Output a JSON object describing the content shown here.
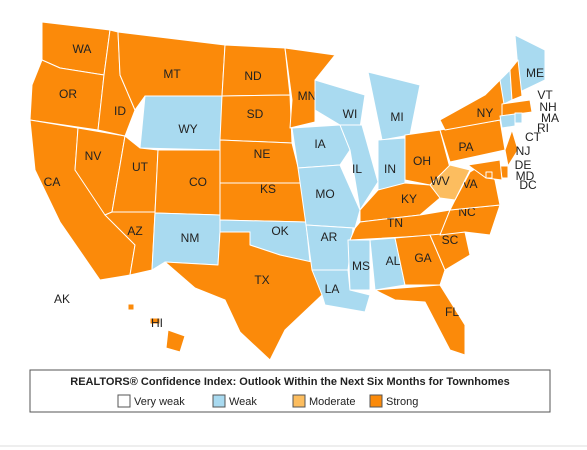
{
  "map": {
    "states": [
      {
        "label": "WA",
        "rating": "Strong"
      },
      {
        "label": "OR",
        "rating": "Strong"
      },
      {
        "label": "CA",
        "rating": "Strong"
      },
      {
        "label": "NV",
        "rating": "Strong"
      },
      {
        "label": "ID",
        "rating": "Strong"
      },
      {
        "label": "MT",
        "rating": "Strong"
      },
      {
        "label": "WY",
        "rating": "Weak"
      },
      {
        "label": "UT",
        "rating": "Strong"
      },
      {
        "label": "AZ",
        "rating": "Strong"
      },
      {
        "label": "CO",
        "rating": "Strong"
      },
      {
        "label": "NM",
        "rating": "Weak"
      },
      {
        "label": "ND",
        "rating": "Strong"
      },
      {
        "label": "SD",
        "rating": "Strong"
      },
      {
        "label": "NE",
        "rating": "Strong"
      },
      {
        "label": "KS",
        "rating": "Strong"
      },
      {
        "label": "OK",
        "rating": "Weak"
      },
      {
        "label": "TX",
        "rating": "Strong"
      },
      {
        "label": "MN",
        "rating": "Strong"
      },
      {
        "label": "IA",
        "rating": "Weak"
      },
      {
        "label": "MO",
        "rating": "Weak"
      },
      {
        "label": "AR",
        "rating": "Weak"
      },
      {
        "label": "LA",
        "rating": "Weak"
      },
      {
        "label": "WI",
        "rating": "Weak"
      },
      {
        "label": "IL",
        "rating": "Weak"
      },
      {
        "label": "MI",
        "rating": "Weak"
      },
      {
        "label": "IN",
        "rating": "Weak"
      },
      {
        "label": "OH",
        "rating": "Strong"
      },
      {
        "label": "KY",
        "rating": "Strong"
      },
      {
        "label": "TN",
        "rating": "Strong"
      },
      {
        "label": "MS",
        "rating": "Weak"
      },
      {
        "label": "AL",
        "rating": "Weak"
      },
      {
        "label": "GA",
        "rating": "Strong"
      },
      {
        "label": "FL",
        "rating": "Strong"
      },
      {
        "label": "SC",
        "rating": "Strong"
      },
      {
        "label": "NC",
        "rating": "Strong"
      },
      {
        "label": "VA",
        "rating": "Strong"
      },
      {
        "label": "WV",
        "rating": "Moderate"
      },
      {
        "label": "PA",
        "rating": "Strong"
      },
      {
        "label": "NY",
        "rating": "Strong"
      },
      {
        "label": "ME",
        "rating": "Weak"
      },
      {
        "label": "VT",
        "rating": "Weak"
      },
      {
        "label": "NH",
        "rating": "Strong"
      },
      {
        "label": "MA",
        "rating": "Strong"
      },
      {
        "label": "RI",
        "rating": "Weak"
      },
      {
        "label": "CT",
        "rating": "Weak"
      },
      {
        "label": "NJ",
        "rating": "Strong"
      },
      {
        "label": "DE",
        "rating": "Strong"
      },
      {
        "label": "MD",
        "rating": "Strong"
      },
      {
        "label": "DC",
        "rating": "Strong"
      },
      {
        "label": "AK",
        "rating": "Very weak"
      },
      {
        "label": "HI",
        "rating": "Strong"
      }
    ],
    "legend": {
      "title": "REALTORS® Confidence Index: Outlook Within the Next Six Months for Townhomes",
      "items": [
        {
          "label": "Very weak",
          "color": "#ffffff"
        },
        {
          "label": "Weak",
          "color": "#a9daf0"
        },
        {
          "label": "Moderate",
          "color": "#fcbd5f"
        },
        {
          "label": "Strong",
          "color": "#fb8a0a"
        }
      ]
    }
  }
}
